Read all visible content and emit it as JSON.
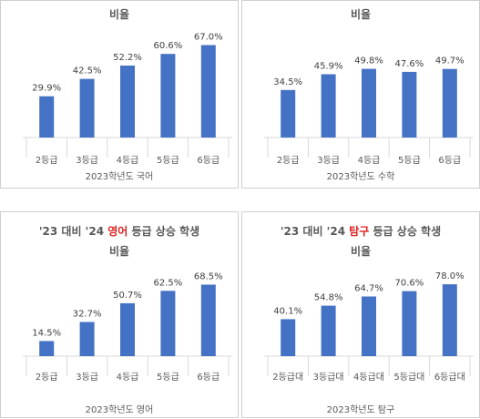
{
  "panels": [
    {
      "header": null,
      "chart_title": "비율",
      "xlabel": "2023학년도 국어"
    },
    {
      "header": null,
      "chart_title": "비율",
      "xlabel": "2023학년도 수학"
    },
    {
      "header": {
        "prefix": "'23 대비 '24 ",
        "highlight": "영어",
        "suffix": " 등급 상승 학생"
      },
      "chart_title": "비율",
      "xlabel": "2023학년도 영어"
    },
    {
      "header": {
        "prefix": "'23 대비 '24 ",
        "highlight": "탐구",
        "suffix": " 등급 상승 학생"
      },
      "chart_title": "비율",
      "xlabel": "2023학년도 탐구"
    }
  ],
  "colors": {
    "bar": "#4472c4",
    "highlight": "#e02020"
  },
  "chart_data": [
    {
      "type": "bar",
      "title": "비율",
      "xlabel": "2023학년도 국어",
      "categories": [
        "2등급",
        "3등급",
        "4등급",
        "5등급",
        "6등급"
      ],
      "values": [
        29.9,
        42.5,
        52.2,
        60.6,
        67.0
      ],
      "data_labels": [
        "29.9%",
        "42.5%",
        "52.2%",
        "60.6%",
        "67.0%"
      ],
      "ylim": [
        0,
        70
      ]
    },
    {
      "type": "bar",
      "title": "비율",
      "xlabel": "2023학년도 수학",
      "categories": [
        "2등급",
        "3등급",
        "4등급",
        "5등급",
        "6등급"
      ],
      "values": [
        34.5,
        45.9,
        49.8,
        47.6,
        49.7
      ],
      "data_labels": [
        "34.5%",
        "45.9%",
        "49.8%",
        "47.6%",
        "49.7%"
      ],
      "ylim": [
        0,
        70
      ]
    },
    {
      "type": "bar",
      "title": "비율",
      "xlabel": "2023학년도 영어",
      "categories": [
        "2등급",
        "3등급",
        "4등급",
        "5등급",
        "6등급"
      ],
      "values": [
        14.5,
        32.7,
        50.7,
        62.5,
        68.5
      ],
      "data_labels": [
        "14.5%",
        "32.7%",
        "50.7%",
        "62.5%",
        "68.5%"
      ],
      "ylim": [
        0,
        75
      ]
    },
    {
      "type": "bar",
      "title": "비율",
      "xlabel": "2023학년도 탐구",
      "categories": [
        "2등급대",
        "3등급대",
        "4등급대",
        "5등급대",
        "6등급대"
      ],
      "values": [
        40.1,
        54.8,
        64.7,
        70.6,
        78.0
      ],
      "data_labels": [
        "40.1%",
        "54.8%",
        "64.7%",
        "70.6%",
        "78.0%"
      ],
      "ylim": [
        0,
        85
      ]
    }
  ]
}
